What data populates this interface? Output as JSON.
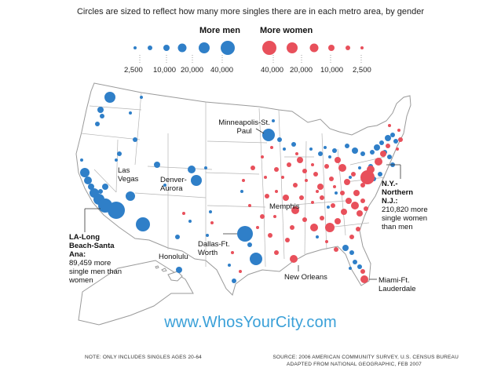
{
  "caption": "Circles are sized to reflect how many more singles there are in each metro area, by gender",
  "legend": {
    "men_title": "More men",
    "women_title": "More women",
    "men_scale": [
      "2,500",
      "10,000",
      "20,000",
      "40,000"
    ],
    "women_scale": [
      "40,000",
      "20,000",
      "10,000",
      "2,500"
    ],
    "men_color": "#2f7fc8",
    "women_color": "#e8505b"
  },
  "labels": {
    "minneapolis": "Minneapolis-St. Paul",
    "las_vegas": "Las Vegas",
    "denver": "Denver-Aurora",
    "memphis": "Memphis",
    "dallas": "Dallas-Ft. Worth",
    "honolulu": "Honolulu",
    "new_orleans": "New Orleans",
    "miami": "Miami-Ft. Lauderdale",
    "la_title": "LA-Long Beach-Santa Ana:",
    "la_detail": "89,459 more single men than women",
    "ny_title": "N.Y.-Northern N.J.:",
    "ny_detail": "210,820 more single women than men"
  },
  "website": "www.WhosYourCity.com",
  "note": "NOTE: ONLY INCLUDES SINGLES AGES 20-64",
  "source_line1": "SOURCE: 2006 AMERICAN COMMUNITY SURVEY, U.S. CENSUS BUREAU",
  "source_line2": "ADAPTED FROM NATIONAL GEOGRAPHIC, FEB 2007"
}
